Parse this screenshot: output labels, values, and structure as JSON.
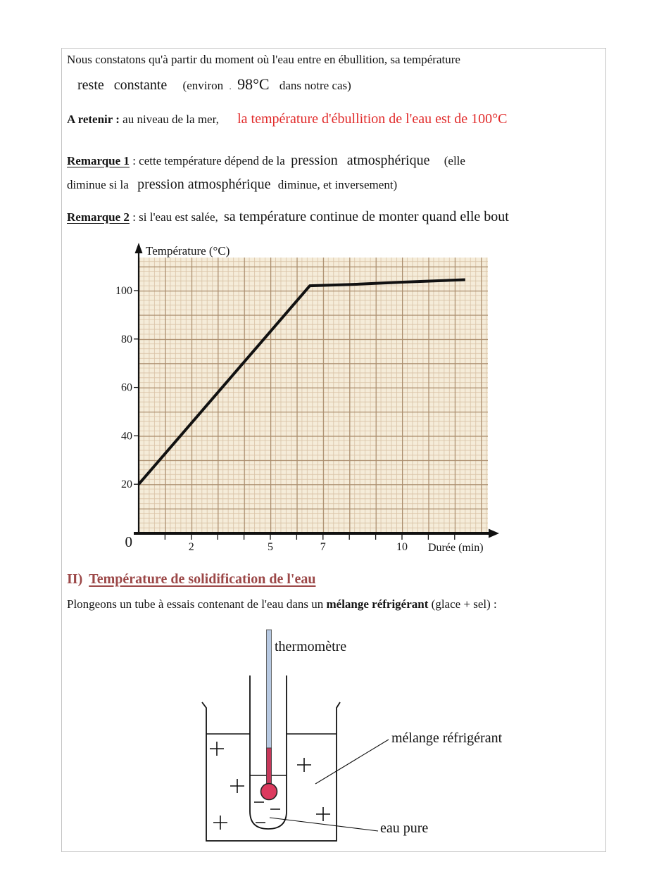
{
  "document": {
    "intro_line1": "Nous constatons qu'à partir du moment où l'eau entre en ébullition, sa température",
    "intro_answer": "reste  constante",
    "intro_environ": "(environ",
    "intro_dot": ".",
    "intro_temp": "98°C",
    "intro_close": "dans notre cas)",
    "retenir_label": "A retenir :",
    "retenir_text": "au niveau de la mer,",
    "retenir_red": "la température d'ébullition de l'eau est de 100°C",
    "remarque1_label": "Remarque 1",
    "remarque1_text1": ": cette température dépend de la",
    "remarque1_answer1": "pression  atmosphérique",
    "remarque1_text2": "(elle",
    "remarque1_line2a": "diminue si la",
    "remarque1_answer2": "pression atmosphérique",
    "remarque1_line2b": "diminue, et inversement)",
    "remarque2_label": "Remarque 2",
    "remarque2_text": ": si l'eau est salée,",
    "remarque2_answer": "sa température continue de monter quand elle bout",
    "section2_numeral": "II)",
    "section2_title": "Température de solidification de l'eau",
    "section2_para_a": "Plongeons un tube à essais contenant de l'eau dans un",
    "section2_para_bold": "mélange réfrigérant",
    "section2_para_b": "(glace + sel) :"
  },
  "chart_data": {
    "type": "line",
    "xlabel": "Durée (min)",
    "ylabel": "Température (°C)",
    "origin_label": "0",
    "xlim": [
      0,
      13
    ],
    "ylim": [
      0,
      113
    ],
    "xticks_labeled": [
      2,
      5,
      7,
      10
    ],
    "xticks_minor_every_min": 1,
    "yticks_labeled": [
      20,
      40,
      60,
      80,
      100
    ],
    "grid": "millimeter graph paper",
    "legend": "none",
    "series": [
      {
        "name": "température",
        "points": [
          [
            0,
            20
          ],
          [
            6.5,
            102
          ],
          [
            8,
            102.5
          ],
          [
            10,
            103.5
          ],
          [
            12.4,
            104.5
          ]
        ]
      }
    ]
  },
  "diagram": {
    "label_thermometer": "thermomètre",
    "label_mixture": "mélange réfrigérant",
    "label_water": "eau pure",
    "mixture_symbol": "+",
    "water_symbol": "−"
  },
  "colors": {
    "answer_red": "#e12b2b",
    "section_heading": "#9c4848",
    "graph_paper_bg": "#f5ecd9",
    "grid_minor": "#d9c2a6",
    "grid_major": "#aa8c6c",
    "thermometer_stem_blue": "#b7c9e2",
    "thermometer_bulb_red": "#dc3a5e",
    "page_border": "#c3c3c3"
  }
}
